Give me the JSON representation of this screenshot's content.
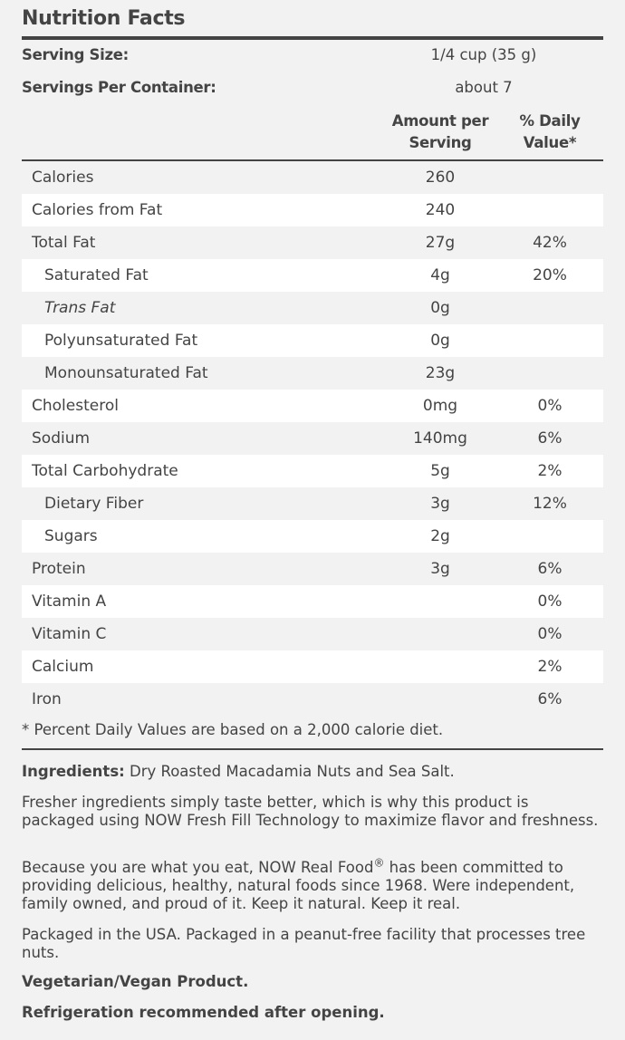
{
  "title": "Nutrition Facts",
  "serving": {
    "size_label": "Serving Size:",
    "size_value": "1/4 cup (35 g)",
    "per_container_label": "Servings Per Container:",
    "per_container_value": "about 7"
  },
  "columns": {
    "amount_line1": "Amount per",
    "amount_line2": "Serving",
    "dv_line1": "% Daily",
    "dv_line2": "Value*"
  },
  "rows": [
    {
      "label": "Calories",
      "amount": "260",
      "dv": ""
    },
    {
      "label": "Calories from Fat",
      "amount": "240",
      "dv": ""
    },
    {
      "label": "Total Fat",
      "amount": "27g",
      "dv": "42%"
    },
    {
      "label": "Saturated Fat",
      "amount": "4g",
      "dv": "20%"
    },
    {
      "label": "Trans Fat",
      "amount": "0g",
      "dv": ""
    },
    {
      "label": "Polyunsaturated Fat",
      "amount": "0g",
      "dv": ""
    },
    {
      "label": "Monounsaturated Fat",
      "amount": "23g",
      "dv": ""
    },
    {
      "label": "Cholesterol",
      "amount": "0mg",
      "dv": "0%"
    },
    {
      "label": "Sodium",
      "amount": "140mg",
      "dv": "6%"
    },
    {
      "label": "Total Carbohydrate",
      "amount": "5g",
      "dv": "2%"
    },
    {
      "label": "Dietary Fiber",
      "amount": "3g",
      "dv": "12%"
    },
    {
      "label": "Sugars",
      "amount": "2g",
      "dv": ""
    },
    {
      "label": "Protein",
      "amount": "3g",
      "dv": "6%"
    },
    {
      "label": "Vitamin A",
      "amount": "",
      "dv": "0%"
    },
    {
      "label": "Vitamin C",
      "amount": "",
      "dv": "0%"
    },
    {
      "label": "Calcium",
      "amount": "",
      "dv": "2%"
    },
    {
      "label": "Iron",
      "amount": "",
      "dv": "6%"
    }
  ],
  "footnote": "* Percent Daily Values are based on a 2,000 calorie diet.",
  "ingredients_label": "Ingredients:",
  "ingredients_text": " Dry Roasted Macadamia Nuts and Sea Salt.",
  "para_fresh": "Fresher ingredients simply taste better, which is why this product is packaged using NOW Fresh Fill Technology to maximize flavor and freshness.",
  "para_real_a": "Because you are what you eat, NOW Real Food",
  "para_real_reg": "®",
  "para_real_b": " has been committed to providing delicious, healthy, natural foods since 1968. Were independent, family owned, and proud of it. Keep it natural. Keep it real.",
  "para_packaged": "Packaged in the USA. Packaged in a peanut-free facility that processes tree nuts.",
  "vegan": "Vegetarian/Vegan Product.",
  "refrigeration": "Refrigeration recommended after opening."
}
